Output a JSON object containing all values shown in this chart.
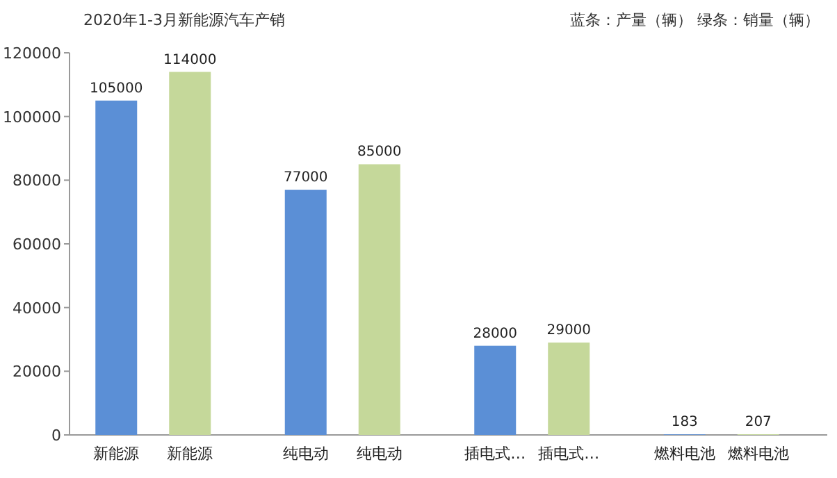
{
  "chart_data": {
    "type": "bar",
    "title": "2020年1-3月新能源汽车产销",
    "categories": [
      "新能源",
      "新能源",
      "纯电动",
      "纯电动",
      "插电式…",
      "插电式…",
      "燃料电池",
      "燃料电池"
    ],
    "values": [
      105000,
      114000,
      77000,
      85000,
      28000,
      29000,
      183,
      207
    ],
    "colors": [
      "#5b8fd6",
      "#c5d89a",
      "#5b8fd6",
      "#c5d89a",
      "#5b8fd6",
      "#c5d89a",
      "#5b8fd6",
      "#c5d89a"
    ],
    "ylim": [
      0,
      120000
    ],
    "yticks": [
      0,
      20000,
      40000,
      60000,
      80000,
      100000,
      120000
    ],
    "data_labels": true,
    "annotations": [
      "蓝条：产量（辆）   绿条：销量（辆）"
    ]
  }
}
